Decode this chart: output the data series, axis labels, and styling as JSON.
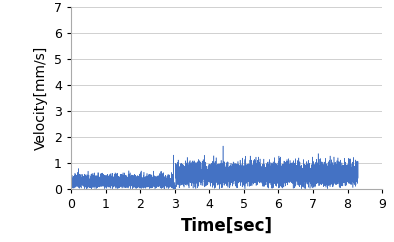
{
  "title": "",
  "xlabel": "Time[sec]",
  "ylabel": "Velocity[mm/s]",
  "xlim": [
    0,
    9
  ],
  "ylim": [
    0,
    7
  ],
  "xticks": [
    0,
    1,
    2,
    3,
    4,
    5,
    6,
    7,
    8,
    9
  ],
  "yticks": [
    0,
    1,
    2,
    3,
    4,
    5,
    6,
    7
  ],
  "line_color": "#4472C4",
  "background_color": "#ffffff",
  "grid_color": "#d0d0d0",
  "total_duration": 8.3,
  "phase1_end": 2.95,
  "phase1_base": 0.28,
  "phase1_noise": 0.13,
  "spike_time": 2.97,
  "spike_value": 1.3,
  "drop_time": 2.99,
  "drop_value": 0.05,
  "phase2_base": 0.58,
  "phase2_noise": 0.22,
  "phase2_bump_time": 4.4,
  "phase2_bump_value": 1.65,
  "num_points": 8000,
  "xlabel_fontsize": 12,
  "ylabel_fontsize": 10,
  "tick_fontsize": 9,
  "linewidth": 0.4
}
